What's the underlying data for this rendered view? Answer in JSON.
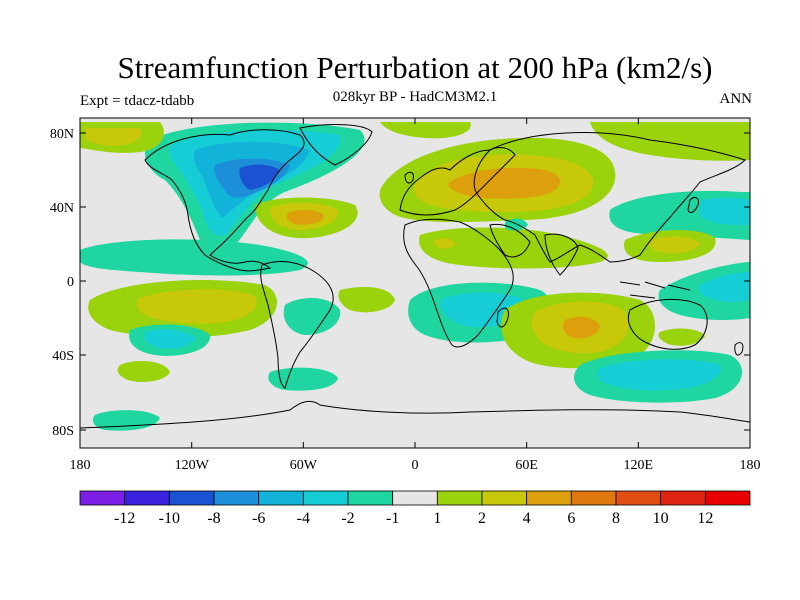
{
  "header": {
    "title": "Streamfunction Perturbation at 200 hPa (km2/s)",
    "subtitle": "028kyr BP - HadCM3M2.1",
    "experiment": "Expt = tdacz-tdabb",
    "season": "ANN"
  },
  "axes": {
    "lat_labels": [
      "80N",
      "40N",
      "0",
      "40S",
      "80S"
    ],
    "lon_labels": [
      "180",
      "120W",
      "60W",
      "0",
      "60E",
      "120E",
      "180"
    ]
  },
  "colorbar": {
    "labels": [
      "-12",
      "-10",
      "-8",
      "-6",
      "-4",
      "-2",
      "-1",
      "1",
      "2",
      "4",
      "6",
      "8",
      "10",
      "12"
    ],
    "colors": [
      "#7b1fe6",
      "#3b22e0",
      "#1a52d4",
      "#1c8fd8",
      "#12b3d8",
      "#16cdd6",
      "#1fd6a0",
      "#e6e6e6",
      "#9ad20c",
      "#c8c80a",
      "#dca00c",
      "#e07810",
      "#e04e12",
      "#e02414",
      "#e80000"
    ]
  },
  "colors": {
    "background": "#e6e6e6",
    "coast": "#000000"
  }
}
